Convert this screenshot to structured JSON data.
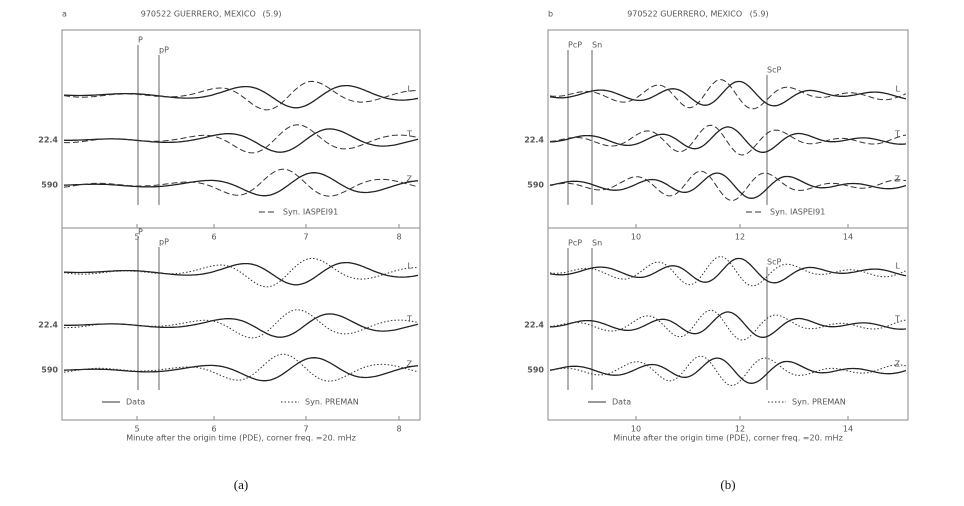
{
  "panels": [
    {
      "label": "a",
      "title": "970522 GUERRERO, MEXICO",
      "magnitude": "(5.9)",
      "ticks": [
        "5",
        "6",
        "7",
        "8"
      ],
      "x_label": "Minute after the origin time (PDE), corner freq. =20. mHz",
      "caption": "(a)",
      "subplots": [
        {
          "distances": [
            "22.4",
            "590"
          ],
          "components": [
            "L",
            "T",
            "Z"
          ],
          "phases": [
            "P",
            "pP"
          ],
          "legend": [
            "Syn. IASPEI91"
          ]
        },
        {
          "distances": [
            "22.4",
            "590"
          ],
          "components": [
            "L",
            "T",
            "Z"
          ],
          "phases": [
            "P",
            "pP"
          ],
          "legend": [
            "Data",
            "Syn. PREMAN"
          ]
        }
      ]
    },
    {
      "label": "b",
      "title": "970522 GUERRERO, MEXICO",
      "magnitude": "(5.9)",
      "ticks": [
        "10",
        "12",
        "14"
      ],
      "x_label": "Minute after the origin time (PDE), corner freq. =20. mHz",
      "caption": "(b)",
      "subplots": [
        {
          "distances": [
            "22.4",
            "590"
          ],
          "components": [
            "L",
            "T",
            "Z"
          ],
          "phases": [
            "PcP",
            "Sn",
            "ScP"
          ],
          "legend": [
            "Syn. IASPEI91"
          ]
        },
        {
          "distances": [
            "22.4",
            "590"
          ],
          "components": [
            "L",
            "T",
            "Z"
          ],
          "phases": [
            "PcP",
            "Sn",
            "ScP"
          ],
          "legend": [
            "Data",
            "Syn. PREMAN"
          ]
        }
      ]
    }
  ]
}
